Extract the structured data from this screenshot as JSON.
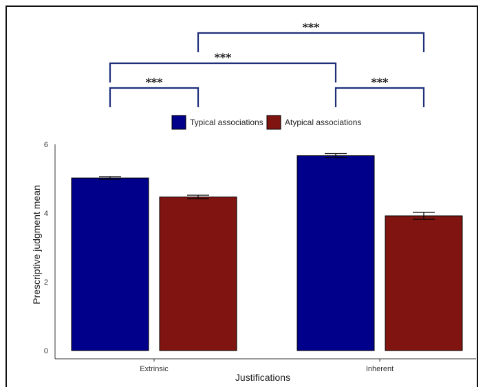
{
  "chart_data": {
    "type": "bar",
    "categories": [
      "Extrinsic",
      "Inherent"
    ],
    "series": [
      {
        "name": "Typical associations",
        "values": [
          5.02,
          5.67
        ],
        "errors": [
          0.04,
          0.06
        ],
        "color": "#00008B"
      },
      {
        "name": "Atypical associations",
        "values": [
          4.47,
          3.92
        ],
        "errors": [
          0.05,
          0.1
        ],
        "color": "#7F1411"
      }
    ],
    "xlabel": "Justifications",
    "ylabel": "Prescriptive judgment mean",
    "ylim": [
      0,
      6
    ],
    "yticks": [
      "0",
      "2",
      "4",
      "6"
    ],
    "grid": false,
    "legend_position": "top",
    "significance": [
      {
        "label": "***",
        "from": "Extrinsic / Typical associations",
        "to": "Extrinsic / Atypical associations"
      },
      {
        "label": "***",
        "from": "Inherent / Typical associations",
        "to": "Inherent / Atypical associations"
      },
      {
        "label": "***",
        "from": "Extrinsic / Typical associations",
        "to": "Inherent / Typical associations"
      },
      {
        "label": "***",
        "from": "Extrinsic / Atypical associations",
        "to": "Inherent / Atypical associations"
      }
    ],
    "bracket_color": "#1F2F7A"
  }
}
